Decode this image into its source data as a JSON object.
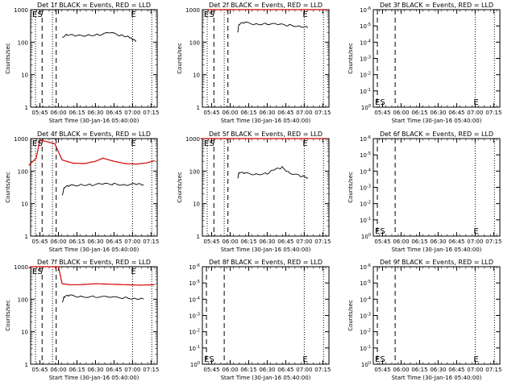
{
  "colors": {
    "events": "#000000",
    "lld": "#d40000",
    "axis": "#000000"
  },
  "chart_data": [
    {
      "id": "1f",
      "type": "line",
      "title": "Det 1f BLACK = Events, RED = LLD",
      "xlabel": "Start Time (30-Jan-16 05:40:00)",
      "ylabel": "Counts/sec",
      "log": true,
      "ylim_exp": [
        0,
        3
      ],
      "yticks": [
        "1",
        "10",
        "100",
        "1000"
      ],
      "xticks": [
        "05:45",
        "06:00",
        "06:15",
        "06:30",
        "06:45",
        "07:00",
        "07:15"
      ],
      "markers": [
        "ES",
        "E"
      ],
      "series": [
        {
          "name": "Events",
          "color": "black",
          "x": [
            6.05,
            6.12,
            6.25,
            6.4,
            6.55,
            6.7,
            6.85,
            6.95,
            7.0,
            7.05
          ],
          "y": [
            145,
            170,
            155,
            165,
            170,
            195,
            160,
            150,
            120,
            110
          ]
        }
      ]
    },
    {
      "id": "2f",
      "type": "line",
      "title": "Det 2f BLACK = Events, RED = LLD",
      "xlabel": "Start Time (30-Jan-16 05:40:00)",
      "ylabel": "Counts/sec",
      "log": true,
      "ylim_exp": [
        0,
        3
      ],
      "yticks": [
        "1",
        "10",
        "100",
        "1000"
      ],
      "xticks": [
        "05:45",
        "06:00",
        "06:15",
        "06:30",
        "06:45",
        "07:00",
        "07:15"
      ],
      "markers": [
        "ES",
        "E"
      ],
      "series": [
        {
          "name": "LLD",
          "color": "red",
          "x": [
            5.7,
            5.8,
            5.88,
            5.95,
            6.05,
            6.15,
            6.3,
            6.5,
            6.7,
            6.9,
            7.1,
            7.3
          ],
          "y": [
            1100,
            2500,
            2800,
            1400,
            1300,
            1250,
            1250,
            1250,
            1250,
            1250,
            1250,
            1250
          ]
        },
        {
          "name": "Events",
          "color": "black",
          "x": [
            6.1,
            6.12,
            6.2,
            6.35,
            6.5,
            6.65,
            6.8,
            6.95,
            7.05
          ],
          "y": [
            200,
            360,
            400,
            360,
            370,
            350,
            330,
            310,
            280
          ]
        }
      ]
    },
    {
      "id": "3f",
      "type": "line",
      "title": "Det 3f BLACK = Events, RED = LLD",
      "xlabel": "Start Time (30-Jan-16 05:40:00)",
      "ylabel": "Counts/sec",
      "log": true,
      "ylim_exp": [
        0,
        6
      ],
      "yticks": [
        "10^0",
        "10^-1",
        "10^-2",
        "10^-3",
        "10^-4",
        "10^-5",
        "10^-6"
      ],
      "xticks": [
        "05:45",
        "06:00",
        "06:15",
        "06:30",
        "06:45",
        "07:00",
        "07:15"
      ],
      "markers": [
        "ES",
        "E"
      ],
      "series": []
    },
    {
      "id": "4f",
      "type": "line",
      "title": "Det 4f BLACK = Events, RED = LLD",
      "xlabel": "Start Time (30-Jan-16 05:40:00)",
      "ylabel": "Counts/sec",
      "log": true,
      "ylim_exp": [
        0,
        3
      ],
      "yticks": [
        "1",
        "10",
        "100",
        "1000"
      ],
      "xticks": [
        "05:45",
        "06:00",
        "06:15",
        "06:30",
        "06:45",
        "07:00",
        "07:15"
      ],
      "markers": [
        "ES",
        "E"
      ],
      "series": [
        {
          "name": "LLD",
          "color": "red",
          "x": [
            5.6,
            5.7,
            5.75,
            5.85,
            5.95,
            6.05,
            6.2,
            6.35,
            6.5,
            6.6,
            6.75,
            6.9,
            7.05,
            7.2,
            7.3
          ],
          "y": [
            150,
            250,
            900,
            800,
            700,
            220,
            175,
            170,
            200,
            250,
            200,
            170,
            165,
            180,
            210
          ]
        },
        {
          "name": "Events",
          "color": "black",
          "x": [
            6.05,
            6.08,
            6.15,
            6.3,
            6.45,
            6.6,
            6.75,
            6.9,
            7.05,
            7.15
          ],
          "y": [
            18,
            32,
            35,
            38,
            38,
            40,
            40,
            38,
            40,
            38
          ]
        }
      ]
    },
    {
      "id": "5f",
      "type": "line",
      "title": "Det 5f BLACK = Events, RED = LLD",
      "xlabel": "Start Time (30-Jan-16 05:40:00)",
      "ylabel": "Counts/sec",
      "log": true,
      "ylim_exp": [
        0,
        3
      ],
      "yticks": [
        "1",
        "10",
        "100",
        "1000"
      ],
      "xticks": [
        "05:45",
        "06:00",
        "06:15",
        "06:30",
        "06:45",
        "07:00",
        "07:15"
      ],
      "markers": [
        "ES",
        "E"
      ],
      "series": [
        {
          "name": "LLD",
          "color": "red",
          "x": [
            5.6,
            5.8,
            6.0,
            6.2,
            6.4,
            6.6,
            6.8,
            7.0,
            7.2,
            7.3
          ],
          "y": [
            1000,
            1100,
            1050,
            1000,
            1050,
            1000,
            1050,
            1000,
            1050,
            1000
          ]
        },
        {
          "name": "Events",
          "color": "black",
          "x": [
            6.1,
            6.12,
            6.2,
            6.35,
            6.5,
            6.6,
            6.7,
            6.8,
            6.95,
            7.05
          ],
          "y": [
            60,
            90,
            85,
            80,
            85,
            110,
            130,
            90,
            70,
            62
          ]
        }
      ]
    },
    {
      "id": "6f",
      "type": "line",
      "title": "Det 6f BLACK = Events, RED = LLD",
      "xlabel": "Start Time (30-Jan-16 05:40:00)",
      "ylabel": "Counts/sec",
      "log": true,
      "ylim_exp": [
        0,
        6
      ],
      "yticks": [
        "10^0",
        "10^-1",
        "10^-2",
        "10^-3",
        "10^-4",
        "10^-5",
        "10^-6"
      ],
      "xticks": [
        "05:45",
        "06:00",
        "06:15",
        "06:30",
        "06:45",
        "07:00",
        "07:15"
      ],
      "markers": [
        "ES",
        "E"
      ],
      "series": []
    },
    {
      "id": "7f",
      "type": "line",
      "title": "Det 7f BLACK = Events, RED = LLD",
      "xlabel": "Start Time (30-Jan-16 05:40:00)",
      "ylabel": "Counts/sec",
      "log": true,
      "ylim_exp": [
        0,
        3
      ],
      "yticks": [
        "1",
        "10",
        "100",
        "1000"
      ],
      "xticks": [
        "05:45",
        "06:00",
        "06:15",
        "06:30",
        "06:45",
        "07:00",
        "07:15"
      ],
      "markers": [
        "ES",
        "E"
      ],
      "series": [
        {
          "name": "LLD",
          "color": "red",
          "x": [
            5.6,
            5.75,
            5.85,
            6.0,
            6.05,
            6.15,
            6.3,
            6.5,
            6.7,
            6.9,
            7.1,
            7.3
          ],
          "y": [
            900,
            2500,
            2800,
            1000,
            300,
            280,
            280,
            300,
            290,
            280,
            270,
            280
          ]
        },
        {
          "name": "Events",
          "color": "black",
          "x": [
            6.05,
            6.08,
            6.15,
            6.3,
            6.5,
            6.7,
            6.9,
            7.05,
            7.15
          ],
          "y": [
            80,
            120,
            130,
            120,
            120,
            115,
            110,
            105,
            100
          ]
        }
      ]
    },
    {
      "id": "8f",
      "type": "line",
      "title": "Det 8f BLACK = Events, RED = LLD",
      "xlabel": "Start Time (30-Jan-16 05:40:00)",
      "ylabel": "",
      "log": true,
      "ylim_exp": [
        0,
        6
      ],
      "yticks": [
        "10^0",
        "10^-1",
        "10^-2",
        "10^-3",
        "10^-4",
        "10^-5",
        "10^-6"
      ],
      "xticks": [
        "05:45",
        "06:00",
        "06:15",
        "06:30",
        "06:45",
        "07:00",
        "07:15"
      ],
      "markers": [
        "ES",
        "E"
      ],
      "series": []
    },
    {
      "id": "9f",
      "type": "line",
      "title": "Det 9f BLACK = Events, RED = LLD",
      "xlabel": "Start Time (30-Jan-16 05:40:00)",
      "ylabel": "Counts/sec",
      "log": true,
      "ylim_exp": [
        0,
        6
      ],
      "yticks": [
        "10^0",
        "10^-1",
        "10^-2",
        "10^-3",
        "10^-4",
        "10^-5",
        "10^-6"
      ],
      "xticks": [
        "05:45",
        "06:00",
        "06:15",
        "06:30",
        "06:45",
        "07:00",
        "07:15"
      ],
      "markers": [
        "ES",
        "E"
      ],
      "series": []
    }
  ]
}
